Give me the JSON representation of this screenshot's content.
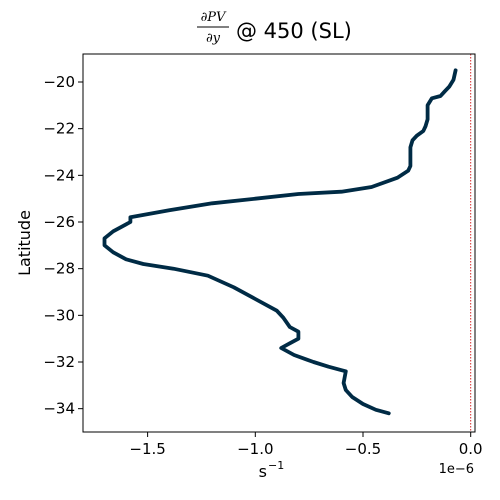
{
  "chart_data": {
    "type": "line",
    "title": {
      "numerator": "∂PV",
      "denominator": "∂y",
      "suffix": "@ 450 (SL)"
    },
    "xlabel": "s",
    "xlabel_exponent": "−1",
    "ylabel": "Latitude",
    "x_offset_label": "1e−6",
    "x_scale": 1e-06,
    "xlim": [
      -1.8,
      0.02
    ],
    "ylim": [
      -35,
      -18.8
    ],
    "x_ticks": [
      -1.5,
      -1.0,
      -0.5,
      0.0
    ],
    "x_tick_labels": [
      "−1.5",
      "−1.0",
      "−0.5",
      "0.0"
    ],
    "y_ticks": [
      -34,
      -32,
      -30,
      -28,
      -26,
      -24,
      -22,
      -20
    ],
    "y_tick_labels": [
      "−34",
      "−32",
      "−30",
      "−28",
      "−26",
      "−24",
      "−22",
      "−20"
    ],
    "grid": false,
    "reference_line": {
      "x": 0.0,
      "color": "#d62728",
      "style": "dotted"
    },
    "series": [
      {
        "color": "#002b45",
        "x": [
          -0.38,
          -0.44,
          -0.5,
          -0.55,
          -0.58,
          -0.59,
          -0.58,
          -0.6,
          -0.66,
          -0.73,
          -0.76,
          -0.82,
          -0.88,
          -0.84,
          -0.8,
          -0.8,
          -0.84,
          -0.87,
          -0.9,
          -1.0,
          -1.1,
          -1.22,
          -1.38,
          -1.52,
          -1.6,
          -1.66,
          -1.7,
          -1.7,
          -1.66,
          -1.62,
          -1.58,
          -1.58,
          -1.4,
          -1.2,
          -1.0,
          -0.8,
          -0.6,
          -0.46,
          -0.34,
          -0.29,
          -0.28,
          -0.28,
          -0.28,
          -0.27,
          -0.25,
          -0.22,
          -0.21,
          -0.2,
          -0.2,
          -0.18,
          -0.14,
          -0.12,
          -0.1,
          -0.08,
          -0.07
        ],
        "y": [
          -34.2,
          -34.05,
          -33.8,
          -33.5,
          -33.2,
          -32.9,
          -32.4,
          -32.35,
          -32.2,
          -32.0,
          -31.9,
          -31.7,
          -31.4,
          -31.2,
          -31.0,
          -30.7,
          -30.5,
          -30.1,
          -29.8,
          -29.3,
          -28.8,
          -28.3,
          -28.0,
          -27.8,
          -27.6,
          -27.3,
          -27.0,
          -26.7,
          -26.4,
          -26.2,
          -26.0,
          -25.8,
          -25.5,
          -25.2,
          -25.0,
          -24.8,
          -24.7,
          -24.5,
          -24.1,
          -23.8,
          -23.6,
          -23.2,
          -22.8,
          -22.5,
          -22.3,
          -22.1,
          -21.9,
          -21.6,
          -21.0,
          -20.7,
          -20.6,
          -20.4,
          -20.2,
          -19.9,
          -19.5
        ]
      }
    ]
  }
}
